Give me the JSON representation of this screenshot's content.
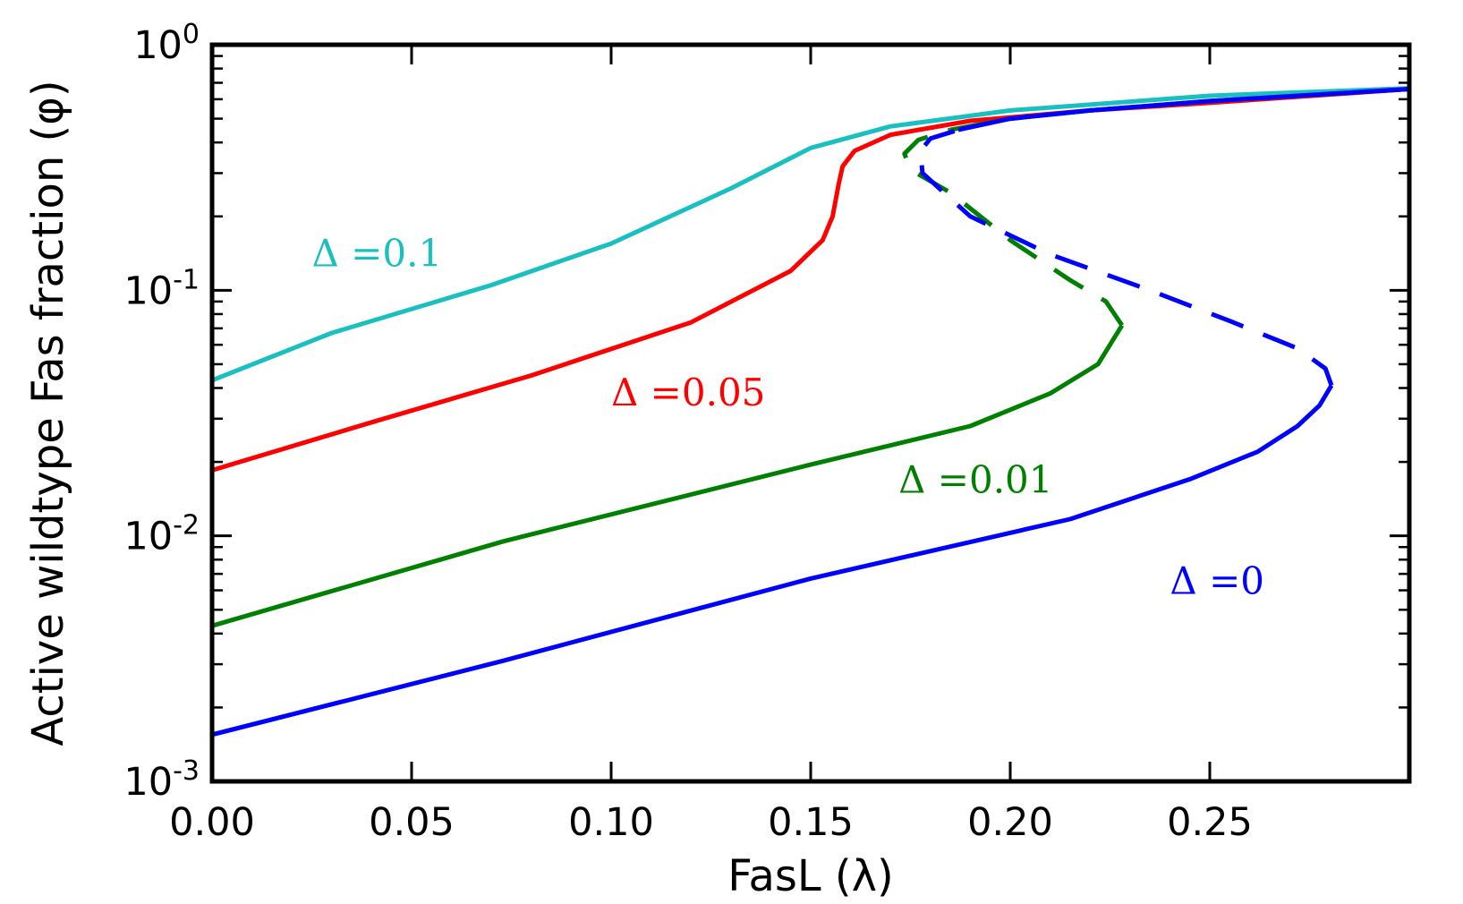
{
  "chart_data": {
    "type": "line",
    "xlabel": "FasL (λ)",
    "ylabel": "Active wildtype Fas fraction (φ)",
    "xlim": [
      0.0,
      0.3
    ],
    "ylim": [
      0.001,
      1.0
    ],
    "yscale": "log",
    "grid": false,
    "x_ticks": [
      0.0,
      0.05,
      0.1,
      0.15,
      0.2,
      0.25
    ],
    "x_tick_labels": [
      "0.00",
      "0.05",
      "0.10",
      "0.15",
      "0.20",
      "0.25"
    ],
    "y_ticks": [
      {
        "value": 1.0,
        "base": "10",
        "exp": "0"
      },
      {
        "value": 0.1,
        "base": "10",
        "exp": "-1"
      },
      {
        "value": 0.01,
        "base": "10",
        "exp": "-2"
      },
      {
        "value": 0.001,
        "base": "10",
        "exp": "-3"
      }
    ],
    "series": [
      {
        "name": "Δ = 0.1",
        "label_text": "Δ =0.1",
        "color": "#1ABFBF",
        "label_at": [
          0.025,
          0.125
        ],
        "segments": [
          {
            "style": "solid",
            "points": [
              [
                0.0,
                0.043
              ],
              [
                0.03,
                0.067
              ],
              [
                0.07,
                0.105
              ],
              [
                0.1,
                0.155
              ],
              [
                0.13,
                0.26
              ],
              [
                0.15,
                0.38
              ],
              [
                0.17,
                0.465
              ],
              [
                0.2,
                0.54
              ],
              [
                0.25,
                0.62
              ],
              [
                0.3,
                0.665
              ]
            ]
          }
        ]
      },
      {
        "name": "Δ = 0.05",
        "label_text": "Δ =0.05",
        "color": "#FF0000",
        "label_at": [
          0.1,
          0.034
        ],
        "segments": [
          {
            "style": "solid",
            "points": [
              [
                0.0,
                0.0185
              ],
              [
                0.04,
                0.029
              ],
              [
                0.08,
                0.045
              ],
              [
                0.12,
                0.074
              ],
              [
                0.145,
                0.12
              ],
              [
                0.153,
                0.16
              ],
              [
                0.1555,
                0.2
              ],
              [
                0.157,
                0.27
              ],
              [
                0.158,
                0.32
              ],
              [
                0.161,
                0.37
              ],
              [
                0.17,
                0.43
              ],
              [
                0.19,
                0.49
              ],
              [
                0.22,
                0.54
              ],
              [
                0.25,
                0.58
              ],
              [
                0.3,
                0.66
              ]
            ]
          }
        ]
      },
      {
        "name": "Δ = 0.01",
        "label_text": "Δ =0.01",
        "color": "#008000",
        "label_at": [
          0.172,
          0.015
        ],
        "segments": [
          {
            "style": "solid",
            "points": [
              [
                0.0,
                0.0043
              ],
              [
                0.073,
                0.0095
              ],
              [
                0.15,
                0.0195
              ],
              [
                0.19,
                0.028
              ],
              [
                0.21,
                0.038
              ],
              [
                0.222,
                0.05
              ],
              [
                0.228,
                0.072
              ]
            ]
          },
          {
            "style": "dashed",
            "points": [
              [
                0.228,
                0.072
              ],
              [
                0.224,
                0.09
              ],
              [
                0.215,
                0.11
              ],
              [
                0.2,
                0.16
              ],
              [
                0.185,
                0.25
              ],
              [
                0.175,
                0.31
              ],
              [
                0.1735,
                0.36
              ],
              [
                0.177,
                0.41
              ],
              [
                0.185,
                0.45
              ]
            ]
          },
          {
            "style": "solid",
            "points": [
              [
                0.185,
                0.45
              ],
              [
                0.2,
                0.5
              ],
              [
                0.22,
                0.54
              ],
              [
                0.25,
                0.59
              ],
              [
                0.3,
                0.66
              ]
            ]
          }
        ]
      },
      {
        "name": "Δ = 0",
        "label_text": "Δ =0",
        "color": "#0000FF",
        "label_at": [
          0.24,
          0.0058
        ],
        "segments": [
          {
            "style": "solid",
            "points": [
              [
                0.0,
                0.00155
              ],
              [
                0.073,
                0.0031
              ],
              [
                0.15,
                0.0067
              ],
              [
                0.215,
                0.0117
              ],
              [
                0.245,
                0.017
              ],
              [
                0.262,
                0.022
              ],
              [
                0.272,
                0.028
              ],
              [
                0.2775,
                0.034
              ],
              [
                0.2805,
                0.041
              ]
            ]
          },
          {
            "style": "dashed",
            "points": [
              [
                0.2805,
                0.041
              ],
              [
                0.279,
                0.048
              ],
              [
                0.272,
                0.058
              ],
              [
                0.255,
                0.075
              ],
              [
                0.235,
                0.1
              ],
              [
                0.21,
                0.14
              ],
              [
                0.19,
                0.2
              ],
              [
                0.178,
                0.3
              ],
              [
                0.1775,
                0.37
              ],
              [
                0.18,
                0.415
              ],
              [
                0.187,
                0.45
              ]
            ]
          },
          {
            "style": "solid",
            "points": [
              [
                0.187,
                0.45
              ],
              [
                0.2,
                0.5
              ],
              [
                0.22,
                0.54
              ],
              [
                0.25,
                0.59
              ],
              [
                0.3,
                0.66
              ]
            ]
          }
        ]
      }
    ]
  }
}
